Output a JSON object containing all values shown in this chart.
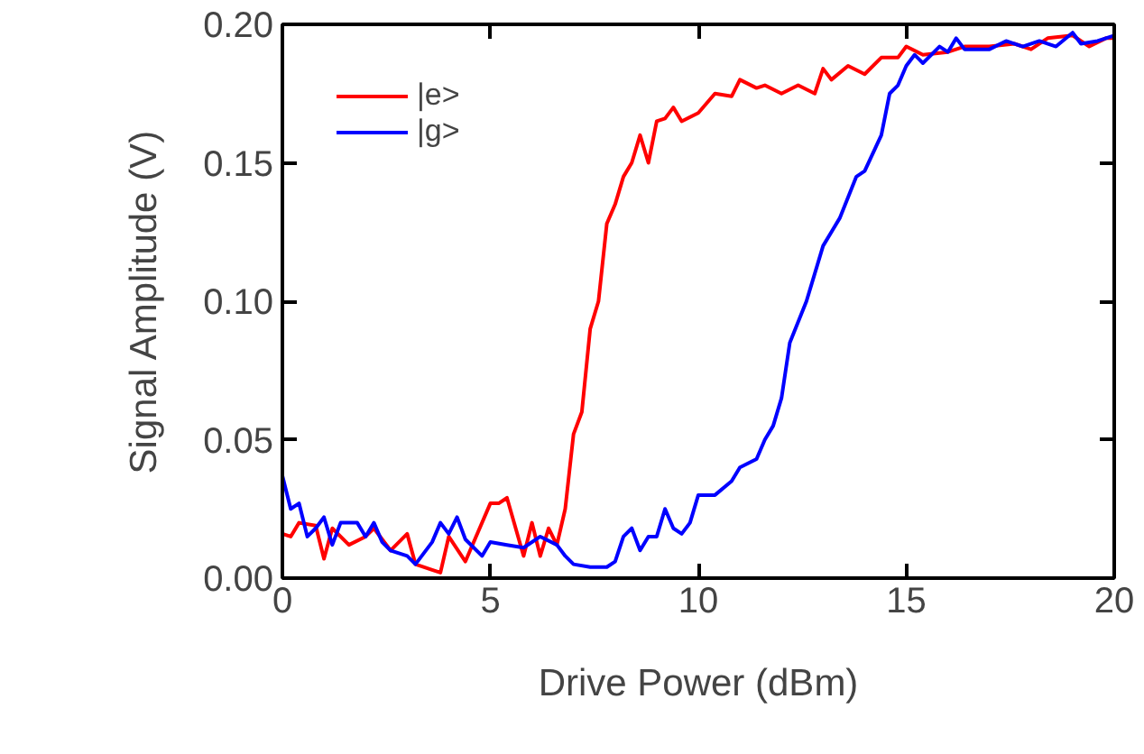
{
  "chart_data": {
    "type": "line",
    "xlabel": "Drive Power (dBm)",
    "ylabel": "Signal Amplitude (V)",
    "xlim": [
      0,
      20
    ],
    "xticks": [
      0,
      5,
      10,
      15,
      20
    ],
    "ylim": [
      0,
      0.2
    ],
    "yticks": [
      {
        "value": 0,
        "label": "0.00"
      },
      {
        "value": 0.05,
        "label": "0.05"
      },
      {
        "value": 0.1,
        "label": "0.10"
      },
      {
        "value": 0.15,
        "label": "0.15"
      },
      {
        "value": 0.2,
        "label": "0.20"
      }
    ],
    "grid": false,
    "legend": "top left",
    "series": [
      {
        "name": "|e>",
        "color": "#ff0000",
        "x": [
          0,
          0.2,
          0.4,
          0.8,
          1.0,
          1.2,
          1.6,
          2.0,
          2.2,
          2.6,
          3.0,
          3.2,
          3.6,
          3.8,
          4.0,
          4.4,
          5.0,
          5.2,
          5.4,
          5.8,
          6.0,
          6.2,
          6.4,
          6.6,
          6.8,
          7.0,
          7.2,
          7.4,
          7.6,
          7.8,
          8.0,
          8.2,
          8.4,
          8.6,
          8.8,
          9.0,
          9.2,
          9.4,
          9.6,
          10.0,
          10.4,
          10.8,
          11.0,
          11.4,
          11.6,
          12.0,
          12.4,
          12.8,
          13.0,
          13.2,
          13.6,
          14.0,
          14.4,
          14.8,
          15.0,
          15.4,
          16.0,
          16.4,
          17.0,
          17.6,
          18.0,
          18.4,
          19.0,
          19.4,
          19.8,
          20.0
        ],
        "values": [
          0.016,
          0.015,
          0.02,
          0.019,
          0.007,
          0.018,
          0.012,
          0.015,
          0.018,
          0.01,
          0.016,
          0.005,
          0.003,
          0.002,
          0.015,
          0.006,
          0.027,
          0.027,
          0.029,
          0.008,
          0.02,
          0.008,
          0.018,
          0.012,
          0.025,
          0.052,
          0.06,
          0.09,
          0.1,
          0.128,
          0.135,
          0.145,
          0.15,
          0.16,
          0.15,
          0.165,
          0.166,
          0.17,
          0.165,
          0.168,
          0.175,
          0.174,
          0.18,
          0.177,
          0.178,
          0.175,
          0.178,
          0.175,
          0.184,
          0.18,
          0.185,
          0.182,
          0.188,
          0.188,
          0.192,
          0.189,
          0.19,
          0.192,
          0.192,
          0.193,
          0.191,
          0.195,
          0.196,
          0.192,
          0.195,
          0.195
        ]
      },
      {
        "name": "|g>",
        "color": "#0000ff",
        "x": [
          0,
          0.2,
          0.4,
          0.6,
          0.8,
          1.0,
          1.2,
          1.4,
          1.8,
          2.0,
          2.2,
          2.4,
          2.6,
          3.0,
          3.2,
          3.6,
          3.8,
          4.0,
          4.2,
          4.4,
          4.8,
          5.0,
          5.4,
          5.8,
          6.2,
          6.6,
          6.8,
          7.0,
          7.4,
          7.8,
          8.0,
          8.2,
          8.4,
          8.6,
          8.8,
          9.0,
          9.2,
          9.4,
          9.6,
          9.8,
          10.0,
          10.4,
          10.8,
          11.0,
          11.4,
          11.6,
          11.8,
          12.0,
          12.2,
          12.6,
          12.8,
          13.0,
          13.4,
          13.8,
          14.0,
          14.4,
          14.6,
          14.8,
          15.0,
          15.2,
          15.4,
          15.8,
          16.0,
          16.2,
          16.4,
          17.0,
          17.4,
          17.8,
          18.2,
          18.6,
          19.0,
          19.2,
          19.6,
          20.0
        ],
        "values": [
          0.037,
          0.025,
          0.027,
          0.015,
          0.018,
          0.022,
          0.012,
          0.02,
          0.02,
          0.015,
          0.02,
          0.013,
          0.01,
          0.008,
          0.005,
          0.013,
          0.02,
          0.016,
          0.022,
          0.014,
          0.008,
          0.013,
          0.012,
          0.011,
          0.015,
          0.012,
          0.008,
          0.005,
          0.004,
          0.004,
          0.006,
          0.015,
          0.018,
          0.01,
          0.015,
          0.015,
          0.025,
          0.018,
          0.016,
          0.02,
          0.03,
          0.03,
          0.035,
          0.04,
          0.043,
          0.05,
          0.055,
          0.065,
          0.085,
          0.1,
          0.11,
          0.12,
          0.13,
          0.145,
          0.147,
          0.16,
          0.175,
          0.178,
          0.185,
          0.189,
          0.186,
          0.192,
          0.19,
          0.195,
          0.191,
          0.191,
          0.194,
          0.192,
          0.194,
          0.192,
          0.197,
          0.193,
          0.194,
          0.196
        ]
      }
    ]
  }
}
